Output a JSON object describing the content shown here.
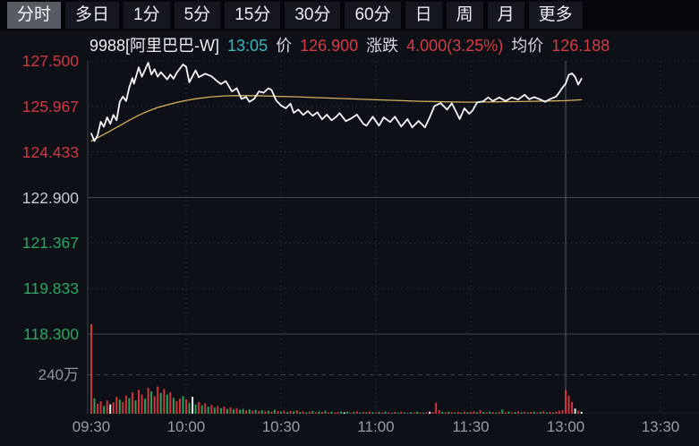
{
  "tabbar": {
    "tabs": [
      {
        "id": "tab-timeshare",
        "label": "分时",
        "active": true
      },
      {
        "id": "tab-multiday",
        "label": "多日",
        "active": false
      },
      {
        "id": "tab-1min",
        "label": "1分",
        "active": false
      },
      {
        "id": "tab-5min",
        "label": "5分",
        "active": false
      },
      {
        "id": "tab-15min",
        "label": "15分",
        "active": false
      },
      {
        "id": "tab-30min",
        "label": "30分",
        "active": false
      },
      {
        "id": "tab-60min",
        "label": "60分",
        "active": false
      },
      {
        "id": "tab-day",
        "label": "日",
        "active": false
      },
      {
        "id": "tab-week",
        "label": "周",
        "active": false
      },
      {
        "id": "tab-month",
        "label": "月",
        "active": false
      },
      {
        "id": "tab-more",
        "label": "更多",
        "active": false
      }
    ]
  },
  "infobar": {
    "symbol": "9988[阿里巴巴-W]",
    "time": "13:05",
    "price_label": "价",
    "price": "126.900",
    "change_label": "涨跌",
    "change": "4.000(3.25%)",
    "avg_label": "均价",
    "avg_price": "126.188"
  },
  "colors": {
    "up": "#ce3a43",
    "down": "#2ea465",
    "flat": "#c7cad0",
    "price_line": "#f7f8fa",
    "avg_line": "#d8b15e",
    "volume_up": "#d0353b",
    "volume_down": "#2da15c",
    "volume_flat": "#e9ebee",
    "grid": "#2a303a",
    "session_divider": "#4a515c",
    "prev_close_line": "#444b57",
    "panel_border": "#3a4048"
  },
  "chart_data": {
    "type": "line",
    "title": "9988 阿里巴巴-W 分时走势",
    "x_ticks": [
      {
        "label": "09:30",
        "minute": 0
      },
      {
        "label": "10:00",
        "minute": 30
      },
      {
        "label": "10:30",
        "minute": 60
      },
      {
        "label": "11:00",
        "minute": 90
      },
      {
        "label": "11:30",
        "minute": 120
      },
      {
        "label": "13:00",
        "minute": 150
      },
      {
        "label": "13:30",
        "minute": 180
      }
    ],
    "x_visible_minutes": 192,
    "session_divider_minute": 150,
    "price_axis_max": 127.5,
    "price_axis_min": 118.3,
    "prev_close": 122.9,
    "y_ticks": [
      {
        "label": "127.500",
        "value": 127.5,
        "hex": "#ce3a43"
      },
      {
        "label": "125.967",
        "value": 125.967,
        "hex": "#ce3a43"
      },
      {
        "label": "124.433",
        "value": 124.433,
        "hex": "#ce3a43"
      },
      {
        "label": "122.900",
        "value": 122.9,
        "hex": "#c7cad0"
      },
      {
        "label": "121.367",
        "value": 121.367,
        "hex": "#2ea465"
      },
      {
        "label": "119.833",
        "value": 119.833,
        "hex": "#2ea465"
      },
      {
        "label": "118.300",
        "value": 118.3,
        "hex": "#2ea465"
      }
    ],
    "volume_axis_label": "240万",
    "volume_axis_value": 240,
    "volume_unit": "万",
    "price_line": [
      [
        0,
        125.05
      ],
      [
        1,
        124.8
      ],
      [
        2,
        125.0
      ],
      [
        3,
        125.45
      ],
      [
        4,
        125.28
      ],
      [
        5,
        125.6
      ],
      [
        6,
        125.38
      ],
      [
        7,
        125.68
      ],
      [
        8,
        125.5
      ],
      [
        9,
        126.12
      ],
      [
        10,
        126.3
      ],
      [
        11,
        126.15
      ],
      [
        12,
        126.6
      ],
      [
        13,
        126.92
      ],
      [
        13.5,
        126.73
      ],
      [
        15,
        127.28
      ],
      [
        16,
        126.97
      ],
      [
        17,
        127.2
      ],
      [
        18,
        127.44
      ],
      [
        19,
        127.04
      ],
      [
        20,
        127.22
      ],
      [
        21,
        126.97
      ],
      [
        22,
        127.12
      ],
      [
        24,
        126.88
      ],
      [
        25,
        127.04
      ],
      [
        26,
        126.9
      ],
      [
        27,
        127.1
      ],
      [
        29,
        127.38
      ],
      [
        30,
        127.3
      ],
      [
        31,
        126.78
      ],
      [
        33,
        127.18
      ],
      [
        34,
        126.95
      ],
      [
        36,
        127.07
      ],
      [
        38,
        126.98
      ],
      [
        40,
        126.8
      ],
      [
        41,
        126.72
      ],
      [
        42.5,
        126.82
      ],
      [
        44.5,
        126.47
      ],
      [
        46,
        126.58
      ],
      [
        47.5,
        126.22
      ],
      [
        49,
        126.28
      ],
      [
        50,
        126.12
      ],
      [
        51.5,
        126.22
      ],
      [
        53,
        126.47
      ],
      [
        54.5,
        126.43
      ],
      [
        56,
        126.58
      ],
      [
        57,
        126.52
      ],
      [
        58.5,
        126.16
      ],
      [
        60,
        126.0
      ],
      [
        61.5,
        125.9
      ],
      [
        63,
        126.06
      ],
      [
        64,
        125.75
      ],
      [
        65.5,
        125.86
      ],
      [
        67,
        125.68
      ],
      [
        68.5,
        125.81
      ],
      [
        70,
        125.65
      ],
      [
        71.5,
        125.77
      ],
      [
        73,
        125.53
      ],
      [
        74.5,
        125.69
      ],
      [
        76,
        125.5
      ],
      [
        77.5,
        125.62
      ],
      [
        78.5,
        125.74
      ],
      [
        80.5,
        125.47
      ],
      [
        82,
        125.55
      ],
      [
        84,
        125.69
      ],
      [
        86,
        125.38
      ],
      [
        87,
        125.32
      ],
      [
        89,
        125.62
      ],
      [
        91,
        125.32
      ],
      [
        92.5,
        125.6
      ],
      [
        94.5,
        125.44
      ],
      [
        96,
        125.62
      ],
      [
        98,
        125.29
      ],
      [
        100,
        125.54
      ],
      [
        101.5,
        125.26
      ],
      [
        103.5,
        125.48
      ],
      [
        105.5,
        125.26
      ],
      [
        107,
        125.6
      ],
      [
        108.5,
        125.98
      ],
      [
        110.5,
        126.08
      ],
      [
        112.5,
        125.86
      ],
      [
        114,
        126.07
      ],
      [
        115.5,
        125.76
      ],
      [
        116.5,
        125.54
      ],
      [
        118,
        125.9
      ],
      [
        119.5,
        125.72
      ],
      [
        120.5,
        125.82
      ],
      [
        122,
        126.1
      ],
      [
        124,
        126.14
      ],
      [
        125.5,
        126.27
      ],
      [
        127,
        126.15
      ],
      [
        129,
        126.27
      ],
      [
        131,
        126.15
      ],
      [
        133,
        126.27
      ],
      [
        135,
        126.2
      ],
      [
        137,
        126.36
      ],
      [
        138.5,
        126.21
      ],
      [
        140,
        126.28
      ],
      [
        142,
        126.2
      ],
      [
        143.5,
        126.12
      ],
      [
        145,
        126.21
      ],
      [
        147,
        126.3
      ],
      [
        148,
        126.44
      ],
      [
        149,
        126.6
      ],
      [
        150,
        126.73
      ],
      [
        151,
        127.03
      ],
      [
        152,
        127.08
      ],
      [
        153,
        126.96
      ],
      [
        154,
        126.7
      ],
      [
        155,
        126.9
      ]
    ],
    "avg_line": [
      [
        0,
        124.8
      ],
      [
        3,
        124.97
      ],
      [
        6,
        125.14
      ],
      [
        9,
        125.32
      ],
      [
        12,
        125.5
      ],
      [
        15,
        125.67
      ],
      [
        18,
        125.81
      ],
      [
        21,
        125.93
      ],
      [
        24,
        126.02
      ],
      [
        27,
        126.1
      ],
      [
        30,
        126.17
      ],
      [
        34,
        126.24
      ],
      [
        38,
        126.29
      ],
      [
        42,
        126.32
      ],
      [
        46,
        126.33
      ],
      [
        52,
        126.33
      ],
      [
        58,
        126.31
      ],
      [
        65,
        126.29
      ],
      [
        72,
        126.26
      ],
      [
        80,
        126.23
      ],
      [
        88,
        126.2
      ],
      [
        96,
        126.17
      ],
      [
        104,
        126.14
      ],
      [
        112,
        126.12
      ],
      [
        120,
        126.11
      ],
      [
        128,
        126.12
      ],
      [
        136,
        126.13
      ],
      [
        144,
        126.15
      ],
      [
        150,
        126.16
      ],
      [
        155,
        126.19
      ]
    ],
    "volume": {
      "unit": "万",
      "values": [
        560,
        95,
        62,
        78,
        48,
        82,
        58,
        70,
        105,
        88,
        72,
        112,
        96,
        132,
        82,
        148,
        118,
        92,
        160,
        138,
        108,
        168,
        128,
        152,
        118,
        132,
        98,
        78,
        92,
        108,
        88,
        68,
        105,
        58,
        72,
        52,
        64,
        44,
        54,
        38,
        48,
        34,
        44,
        30,
        40,
        27,
        34,
        24,
        30,
        21,
        27,
        19,
        24,
        17,
        21,
        15,
        19,
        14,
        24,
        17,
        13,
        19,
        11,
        17,
        14,
        21,
        11,
        15,
        9,
        13,
        17,
        9,
        14,
        11,
        19,
        9,
        13,
        7,
        11,
        15,
        9,
        13,
        7,
        11,
        15,
        8,
        12,
        9,
        14,
        10,
        7,
        12,
        8,
        13,
        9,
        6,
        11,
        7,
        12,
        8,
        6,
        10,
        7,
        12,
        8,
        6,
        9,
        13,
        10,
        68,
        22,
        12,
        9,
        14,
        10,
        7,
        12,
        8,
        13,
        9,
        11,
        15,
        10,
        22,
        12,
        9,
        14,
        10,
        7,
        12,
        26,
        9,
        13,
        8,
        11,
        15,
        9,
        13,
        7,
        11,
        14,
        8,
        12,
        16,
        9,
        12,
        8,
        14,
        18,
        22,
        148,
        112,
        72,
        32,
        18,
        12
      ],
      "colors": "rgrrgrwrrgrrgrgrrgrgrrgrgrgrrgrgwgrgrgrgrgrgrgrggrgrgrgrgrgrgrgrgrgrgrgrgrgrgrrgwgrgrgrgrgrgrgrgrgrgrgrgrgrwrrrgrgrgrgrgrrgrgrgrgrgrgrgrgrgrgrgrgrgrrrrrrwr"
    }
  }
}
